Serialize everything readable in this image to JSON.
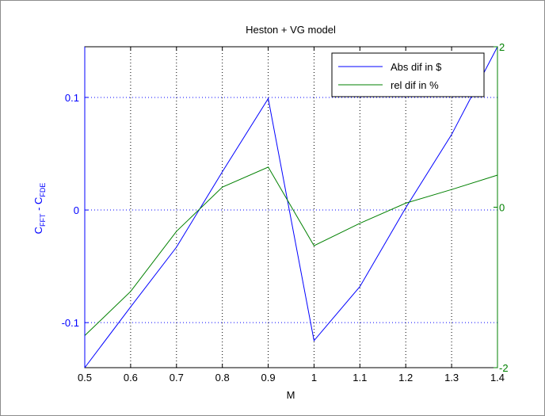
{
  "chart_data": {
    "type": "line",
    "title": "Heston + VG model",
    "xlabel": "M",
    "ylabel_left": {
      "main": "C",
      "sub1": "FFT",
      "mid": " - C",
      "sub2": "FDE"
    },
    "xlim": [
      0.5,
      1.4
    ],
    "ylim_left": [
      -0.14,
      0.145
    ],
    "ylim_right": [
      -2,
      2
    ],
    "x_ticks": [
      "0.5",
      "0.6",
      "0.7",
      "0.8",
      "0.9",
      "1",
      "1.1",
      "1.2",
      "1.3",
      "1.4"
    ],
    "y_ticks_left": [
      "-0.1",
      "0",
      "0.1"
    ],
    "y_ticks_right": [
      "-2",
      "0",
      "2"
    ],
    "grid": true,
    "legend_position": "top-right",
    "colors": {
      "left_axis": "#0000ff",
      "right_axis": "#008000",
      "grid": "#000000",
      "axes": "#000000"
    },
    "series": [
      {
        "name": "Abs dif in $",
        "axis": "left",
        "color": "#0000ff",
        "x": [
          0.5,
          0.6,
          0.7,
          0.8,
          0.9,
          1.0,
          1.1,
          1.2,
          1.3,
          1.4
        ],
        "y": [
          -0.14,
          -0.086,
          -0.033,
          0.034,
          0.099,
          -0.116,
          -0.068,
          0.002,
          0.067,
          0.145
        ]
      },
      {
        "name": "rel dif in %",
        "axis": "right",
        "color": "#008000",
        "x": [
          0.5,
          0.6,
          0.7,
          0.8,
          0.9,
          1.0,
          1.1,
          1.2,
          1.3,
          1.4
        ],
        "y": [
          -1.6,
          -1.05,
          -0.3,
          0.25,
          0.5,
          -0.48,
          -0.2,
          0.05,
          0.22,
          0.4
        ]
      }
    ]
  }
}
